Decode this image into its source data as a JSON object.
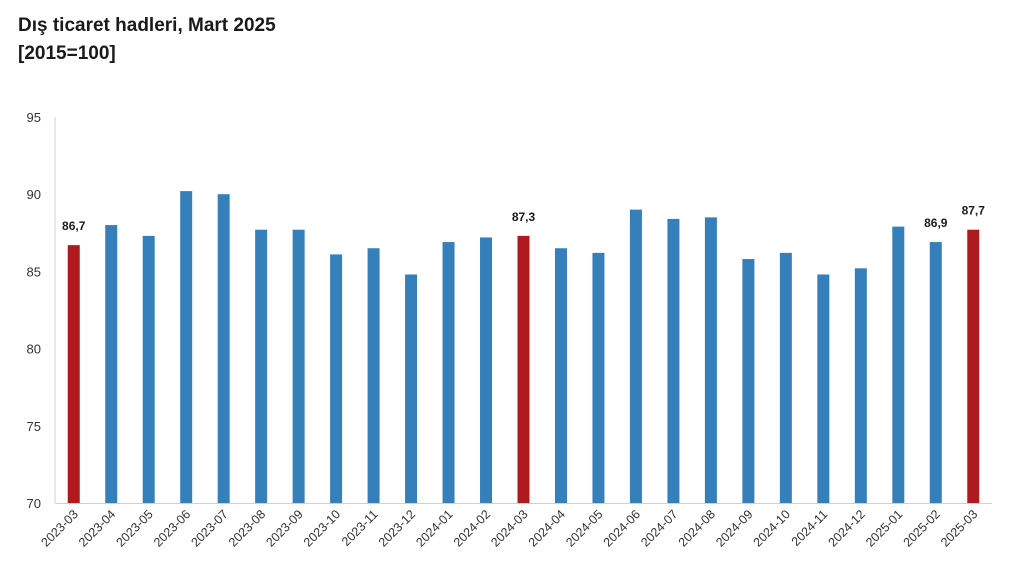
{
  "header": {
    "title": "Dış ticaret hadleri, Mart 2025",
    "subtitle": "[2015=100]"
  },
  "colors": {
    "bar": "#3580bb",
    "highlight": "#ae1a1e",
    "axis": "#d0d0d0",
    "text": "#333333"
  },
  "chart_data": {
    "type": "bar",
    "title": "Dış ticaret hadleri, Mart 2025",
    "subtitle": "[2015=100]",
    "xlabel": "",
    "ylabel": "",
    "ylim": [
      70,
      95
    ],
    "yticks": [
      70,
      75,
      80,
      85,
      90,
      95
    ],
    "grid": false,
    "categories": [
      "2023-03",
      "2023-04",
      "2023-05",
      "2023-06",
      "2023-07",
      "2023-08",
      "2023-09",
      "2023-10",
      "2023-11",
      "2023-12",
      "2024-01",
      "2024-02",
      "2024-03",
      "2024-04",
      "2024-05",
      "2024-06",
      "2024-07",
      "2024-08",
      "2024-09",
      "2024-10",
      "2024-11",
      "2024-12",
      "2025-01",
      "2025-02",
      "2025-03"
    ],
    "values": [
      86.7,
      88.0,
      87.3,
      90.2,
      90.0,
      87.7,
      87.7,
      86.1,
      86.5,
      84.8,
      86.9,
      87.2,
      87.3,
      86.5,
      86.2,
      89.0,
      88.4,
      88.5,
      85.8,
      86.2,
      84.8,
      85.2,
      87.9,
      86.9,
      87.7
    ],
    "highlighted": [
      "2023-03",
      "2024-03",
      "2025-03"
    ],
    "data_labels": [
      {
        "category": "2023-03",
        "text": "86,7"
      },
      {
        "category": "2024-03",
        "text": "87,3"
      },
      {
        "category": "2025-02",
        "text": "86,9"
      },
      {
        "category": "2025-03",
        "text": "87,7"
      }
    ]
  }
}
